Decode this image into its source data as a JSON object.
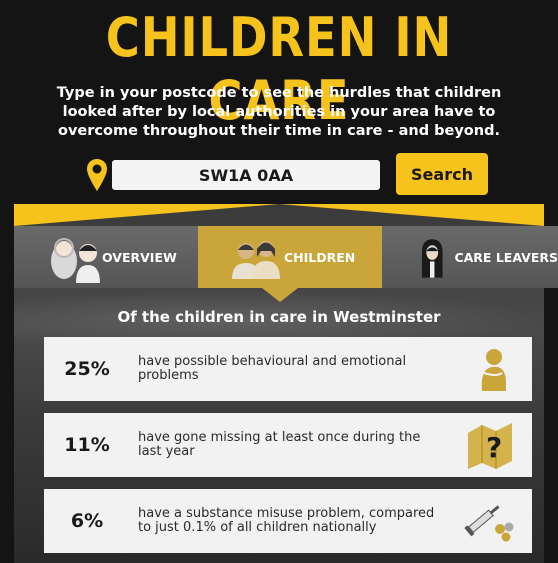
{
  "header": {
    "title": "CHILDREN IN CARE",
    "intro": "Type in your postcode to see the hurdles that children looked after by local authorities in your area have to overcome throughout their time in care - and beyond."
  },
  "search": {
    "postcode_value": "SW1A 0AA",
    "button_label": "Search"
  },
  "tabs": [
    {
      "label": "OVERVIEW",
      "active": false
    },
    {
      "label": "CHILDREN",
      "active": true
    },
    {
      "label": "CARE LEAVERS",
      "active": false
    }
  ],
  "section": {
    "heading": "Of the children in care in Westminster"
  },
  "stats": [
    {
      "percent": "25%",
      "text": "have possible behavioural and emotional problems",
      "icon": "sad-child-icon"
    },
    {
      "percent": "11%",
      "text": "have gone missing at least once during the last year",
      "icon": "missing-map-icon"
    },
    {
      "percent": "6%",
      "text": "have a substance misuse problem, compared to just 0.1% of all children nationally",
      "icon": "syringe-pills-icon"
    }
  ],
  "colors": {
    "accent": "#f6c21c",
    "active_tab": "#c9a53a",
    "background": "#141414",
    "card": "#f2f2f2"
  }
}
